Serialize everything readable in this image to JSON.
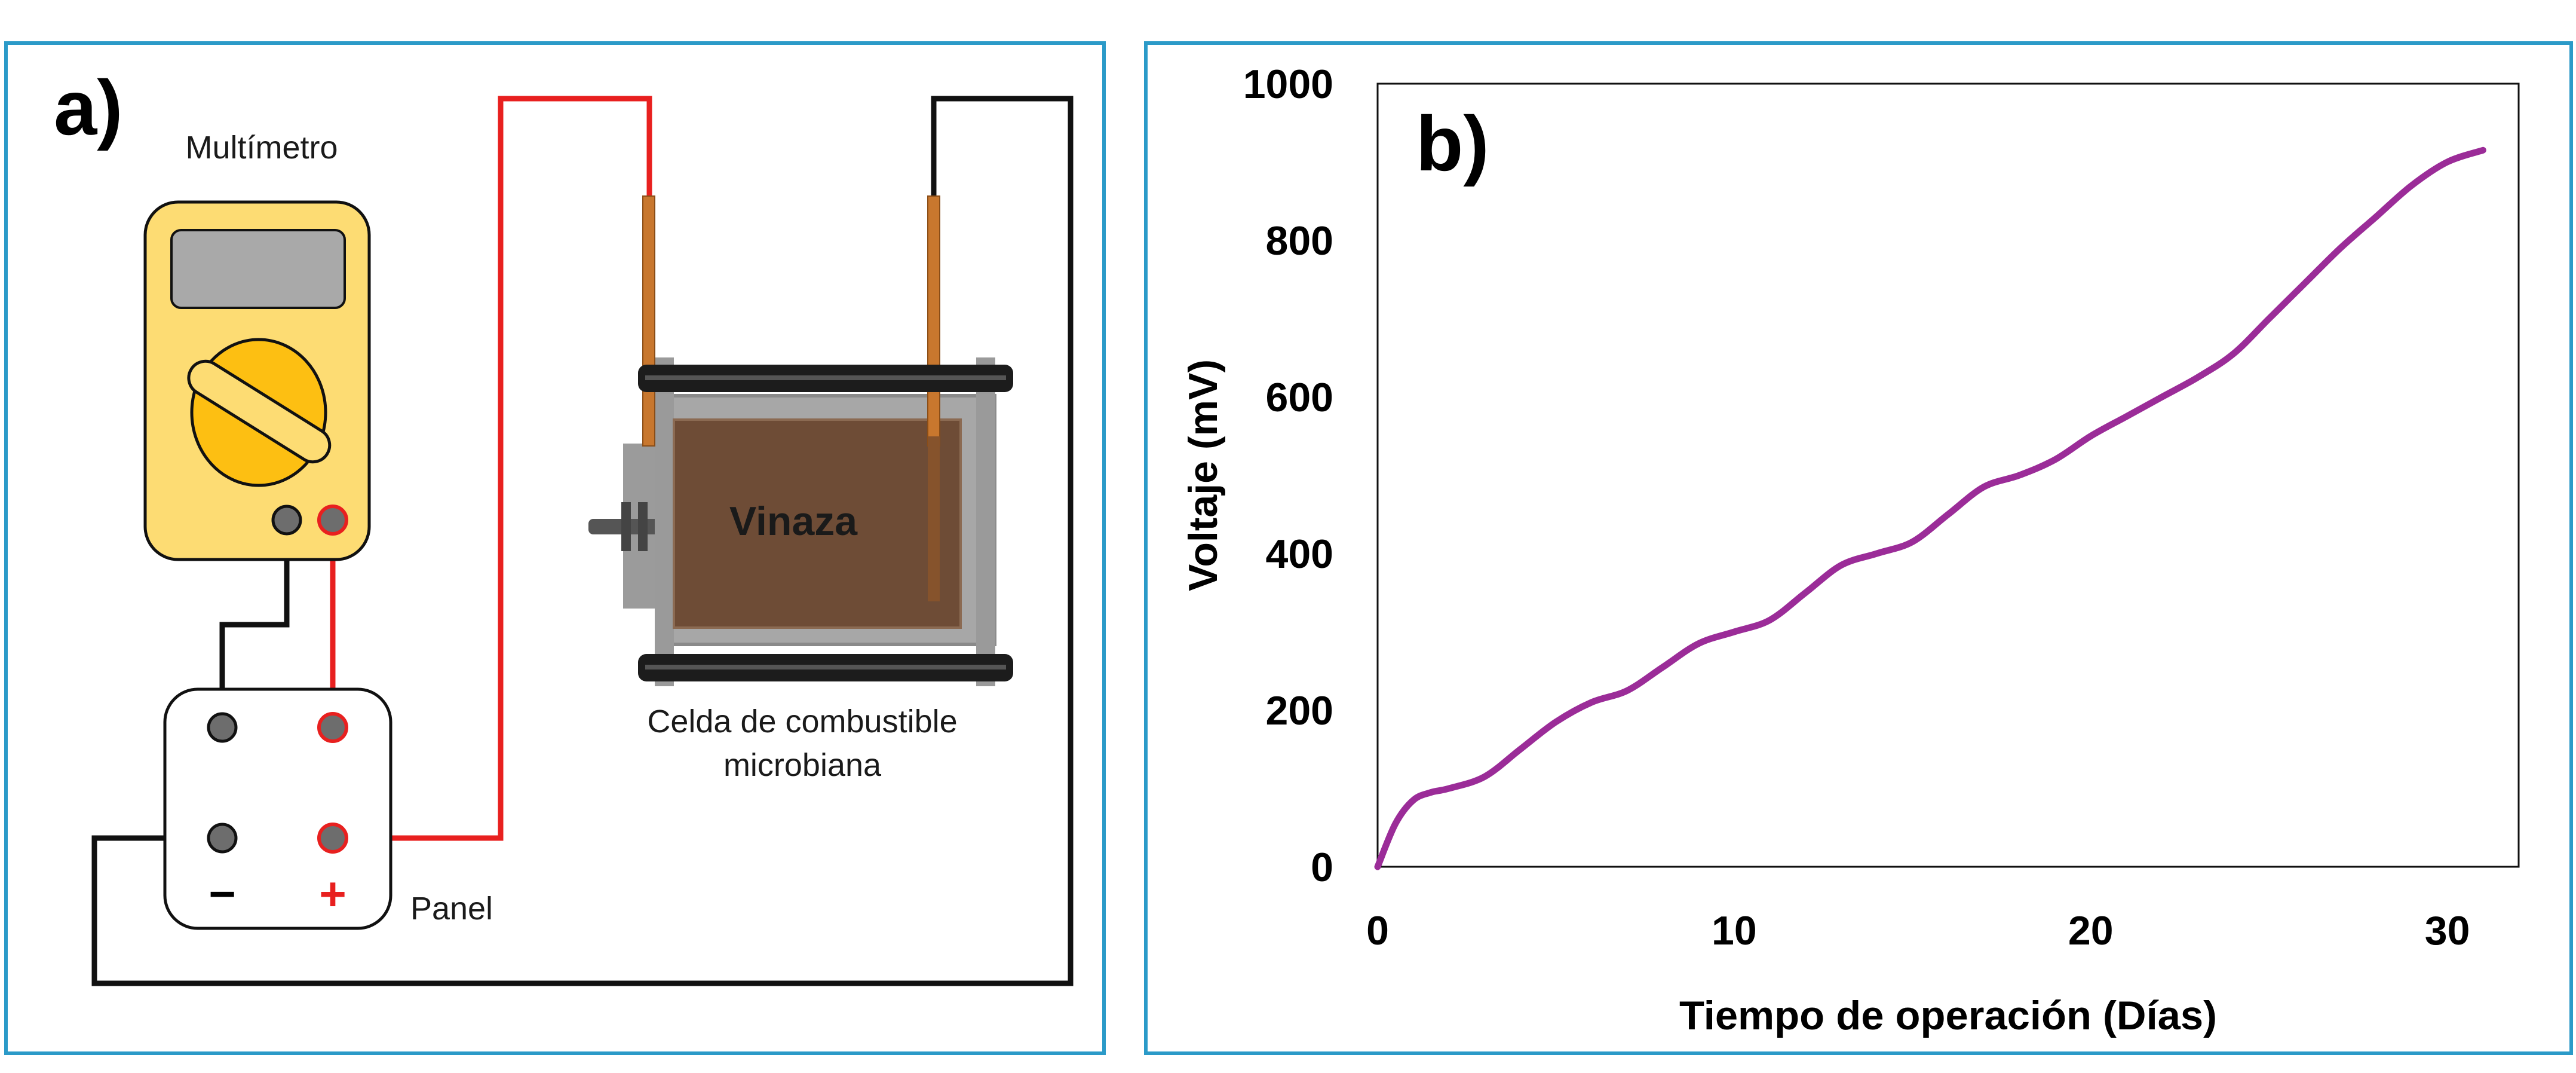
{
  "panel_a": {
    "letter": "a)",
    "multimeter_label": "Multímetro",
    "panel_label": "Panel",
    "minus_symbol": "−",
    "plus_symbol": "+",
    "cell_label_line1": "Celda de combustible",
    "cell_label_line2": "microbiana",
    "substrate_label": "Vinaza"
  },
  "colors": {
    "frame": "#2b9ac8",
    "red_wire": "#e8201f",
    "black_wire": "#111111",
    "multimeter_body": "#fddc73",
    "multimeter_dial": "#fdbf12",
    "vinasse": "#6e4c36",
    "line": "#9b2c98"
  },
  "chart_data": {
    "type": "line",
    "panel_letter": "b)",
    "title": "",
    "xlabel": "Tiempo de operación (Días)",
    "ylabel": "Voltaje (mV)",
    "xlim": [
      0,
      32
    ],
    "ylim": [
      0,
      1000
    ],
    "xticks": [
      0,
      10,
      20,
      30
    ],
    "yticks": [
      0,
      200,
      400,
      600,
      800,
      1000
    ],
    "grid": false,
    "series": [
      {
        "name": "Voltaje",
        "x": [
          0,
          0.5,
          1,
          1.5,
          2,
          3,
          4,
          5,
          6,
          7,
          8,
          9,
          10,
          11,
          12,
          13,
          14,
          15,
          16,
          17,
          18,
          19,
          20,
          21,
          22,
          23,
          24,
          25,
          26,
          27,
          28,
          29,
          30,
          31
        ],
        "y": [
          0,
          55,
          85,
          95,
          100,
          115,
          150,
          185,
          210,
          225,
          255,
          285,
          300,
          315,
          350,
          385,
          400,
          415,
          450,
          485,
          500,
          520,
          550,
          575,
          600,
          625,
          655,
          700,
          745,
          790,
          830,
          870,
          900,
          915
        ]
      }
    ]
  }
}
